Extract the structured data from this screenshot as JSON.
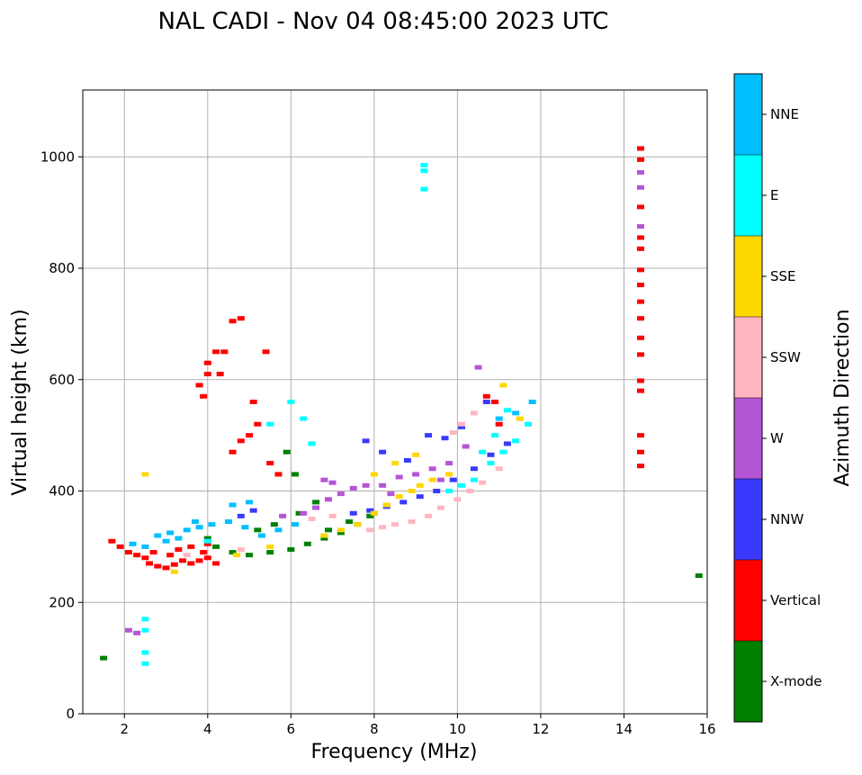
{
  "title": "NAL CADI - Nov 04 08:45:00 2023 UTC",
  "chart_data": {
    "type": "scatter",
    "title": "NAL CADI - Nov 04 08:45:00 2023 UTC",
    "xlabel": "Frequency (MHz)",
    "ylabel": "Virtual height (km)",
    "xlim": [
      1,
      16
    ],
    "ylim": [
      0,
      1120
    ],
    "x_ticks": [
      2,
      4,
      6,
      8,
      10,
      12,
      14,
      16
    ],
    "y_ticks": [
      0,
      200,
      400,
      600,
      800,
      1000
    ],
    "grid": true,
    "colorbar": {
      "label": "Azimuth Direction",
      "categories": [
        {
          "name": "X-mode",
          "color": "#008000"
        },
        {
          "name": "Vertical",
          "color": "#ff0000"
        },
        {
          "name": "NNW",
          "color": "#3a3aff"
        },
        {
          "name": "W",
          "color": "#b455d6"
        },
        {
          "name": "SSW",
          "color": "#ffb6c1"
        },
        {
          "name": "SSE",
          "color": "#ffd700"
        },
        {
          "name": "E",
          "color": "#00ffff"
        },
        {
          "name": "NNE",
          "color": "#00bfff"
        }
      ]
    },
    "traces": [
      {
        "category": "Vertical",
        "points": [
          [
            2.5,
            280
          ],
          [
            2.6,
            270
          ],
          [
            2.8,
            265
          ],
          [
            3.0,
            262
          ],
          [
            3.2,
            268
          ],
          [
            3.4,
            275
          ],
          [
            3.6,
            270
          ],
          [
            3.8,
            275
          ],
          [
            4.0,
            280
          ],
          [
            3.3,
            295
          ],
          [
            3.6,
            300
          ],
          [
            3.9,
            290
          ],
          [
            2.3,
            285
          ],
          [
            2.1,
            290
          ],
          [
            1.9,
            300
          ],
          [
            1.7,
            310
          ],
          [
            4.2,
            270
          ],
          [
            4.0,
            305
          ],
          [
            3.1,
            285
          ],
          [
            2.7,
            290
          ]
        ]
      },
      {
        "category": "X-mode",
        "points": [
          [
            4.2,
            300
          ],
          [
            4.6,
            290
          ],
          [
            5.0,
            285
          ],
          [
            5.5,
            290
          ],
          [
            6.0,
            295
          ],
          [
            6.4,
            305
          ],
          [
            6.8,
            315
          ],
          [
            7.2,
            325
          ],
          [
            7.6,
            340
          ],
          [
            7.9,
            355
          ],
          [
            8.0,
            360
          ],
          [
            4.0,
            315
          ],
          [
            5.6,
            340
          ],
          [
            6.2,
            360
          ],
          [
            6.6,
            380
          ],
          [
            5.2,
            330
          ],
          [
            6.9,
            330
          ],
          [
            7.4,
            345
          ],
          [
            6.1,
            430
          ],
          [
            5.9,
            470
          ],
          [
            1.5,
            100
          ],
          [
            15.8,
            248
          ]
        ]
      },
      {
        "category": "NNE",
        "points": [
          [
            2.8,
            320
          ],
          [
            3.1,
            325
          ],
          [
            3.5,
            330
          ],
          [
            3.8,
            335
          ],
          [
            4.1,
            340
          ],
          [
            4.5,
            345
          ],
          [
            4.9,
            335
          ],
          [
            5.3,
            320
          ],
          [
            5.7,
            330
          ],
          [
            6.1,
            340
          ],
          [
            3.0,
            310
          ],
          [
            3.3,
            315
          ],
          [
            2.2,
            305
          ],
          [
            2.5,
            300
          ],
          [
            11.0,
            530
          ],
          [
            11.4,
            540
          ],
          [
            11.8,
            560
          ],
          [
            4.6,
            375
          ],
          [
            5.0,
            380
          ],
          [
            3.7,
            345
          ]
        ]
      },
      {
        "category": "E",
        "points": [
          [
            9.8,
            400
          ],
          [
            10.1,
            410
          ],
          [
            10.4,
            420
          ],
          [
            10.8,
            450
          ],
          [
            11.1,
            470
          ],
          [
            11.4,
            490
          ],
          [
            11.7,
            520
          ],
          [
            10.6,
            470
          ],
          [
            10.9,
            500
          ],
          [
            11.2,
            545
          ],
          [
            9.2,
            985
          ],
          [
            9.2,
            975
          ],
          [
            9.2,
            942
          ],
          [
            2.5,
            150
          ],
          [
            2.5,
            110
          ],
          [
            2.5,
            90
          ],
          [
            2.5,
            170
          ],
          [
            4.0,
            310
          ],
          [
            5.5,
            520
          ],
          [
            6.0,
            560
          ],
          [
            6.3,
            530
          ],
          [
            6.5,
            485
          ]
        ]
      },
      {
        "category": "W",
        "points": [
          [
            6.3,
            360
          ],
          [
            6.6,
            370
          ],
          [
            6.9,
            385
          ],
          [
            7.2,
            395
          ],
          [
            7.5,
            405
          ],
          [
            7.8,
            410
          ],
          [
            8.2,
            410
          ],
          [
            8.6,
            425
          ],
          [
            9.0,
            430
          ],
          [
            9.4,
            440
          ],
          [
            9.8,
            450
          ],
          [
            8.4,
            395
          ],
          [
            8.9,
            400
          ],
          [
            9.6,
            420
          ],
          [
            10.2,
            480
          ],
          [
            10.5,
            622
          ],
          [
            7.0,
            415
          ],
          [
            6.8,
            420
          ],
          [
            5.8,
            355
          ],
          [
            2.3,
            145
          ],
          [
            2.1,
            150
          ]
        ]
      },
      {
        "category": "NNW",
        "points": [
          [
            7.5,
            360
          ],
          [
            7.9,
            365
          ],
          [
            8.3,
            372
          ],
          [
            8.7,
            380
          ],
          [
            9.1,
            390
          ],
          [
            9.5,
            400
          ],
          [
            9.9,
            420
          ],
          [
            10.4,
            440
          ],
          [
            10.8,
            465
          ],
          [
            11.2,
            485
          ],
          [
            7.8,
            490
          ],
          [
            8.2,
            470
          ],
          [
            8.8,
            455
          ],
          [
            9.3,
            500
          ],
          [
            9.7,
            495
          ],
          [
            10.1,
            515
          ],
          [
            10.7,
            560
          ],
          [
            5.1,
            365
          ],
          [
            4.8,
            355
          ]
        ]
      },
      {
        "category": "SSW",
        "points": [
          [
            7.9,
            330
          ],
          [
            8.2,
            335
          ],
          [
            8.5,
            340
          ],
          [
            8.9,
            345
          ],
          [
            9.3,
            355
          ],
          [
            9.6,
            370
          ],
          [
            10.0,
            385
          ],
          [
            10.3,
            400
          ],
          [
            10.6,
            415
          ],
          [
            11.0,
            440
          ],
          [
            6.5,
            350
          ],
          [
            7.0,
            355
          ],
          [
            9.9,
            505
          ],
          [
            10.1,
            520
          ],
          [
            10.4,
            540
          ],
          [
            3.5,
            285
          ],
          [
            4.8,
            295
          ]
        ]
      },
      {
        "category": "SSE",
        "points": [
          [
            6.8,
            320
          ],
          [
            7.2,
            330
          ],
          [
            7.6,
            340
          ],
          [
            8.0,
            360
          ],
          [
            8.3,
            375
          ],
          [
            8.6,
            390
          ],
          [
            8.9,
            400
          ],
          [
            9.1,
            410
          ],
          [
            9.4,
            420
          ],
          [
            9.8,
            430
          ],
          [
            8.0,
            430
          ],
          [
            8.5,
            450
          ],
          [
            9.0,
            465
          ],
          [
            11.1,
            590
          ],
          [
            11.5,
            530
          ],
          [
            2.5,
            430
          ],
          [
            4.7,
            285
          ],
          [
            5.5,
            300
          ],
          [
            3.2,
            255
          ]
        ]
      },
      {
        "category": "Vertical",
        "points": [
          [
            4.0,
            610
          ],
          [
            4.0,
            630
          ],
          [
            4.2,
            650
          ],
          [
            4.4,
            650
          ],
          [
            4.3,
            610
          ],
          [
            3.8,
            590
          ],
          [
            3.9,
            570
          ],
          [
            5.4,
            650
          ],
          [
            4.8,
            710
          ],
          [
            4.6,
            705
          ],
          [
            5.1,
            560
          ],
          [
            5.2,
            520
          ],
          [
            5.0,
            500
          ],
          [
            4.8,
            490
          ],
          [
            4.6,
            470
          ],
          [
            5.5,
            450
          ],
          [
            5.7,
            430
          ],
          [
            10.7,
            570
          ],
          [
            10.9,
            560
          ],
          [
            11.0,
            520
          ]
        ]
      },
      {
        "category": "Vertical",
        "points": [
          [
            14.4,
            1015
          ],
          [
            14.4,
            995
          ],
          [
            14.4,
            910
          ],
          [
            14.4,
            855
          ],
          [
            14.4,
            835
          ],
          [
            14.4,
            797
          ],
          [
            14.4,
            770
          ],
          [
            14.4,
            740
          ],
          [
            14.4,
            710
          ],
          [
            14.4,
            675
          ],
          [
            14.4,
            645
          ],
          [
            14.4,
            598
          ],
          [
            14.4,
            580
          ],
          [
            14.4,
            500
          ],
          [
            14.4,
            470
          ],
          [
            14.4,
            445
          ]
        ]
      },
      {
        "category": "W",
        "points": [
          [
            14.4,
            972
          ],
          [
            14.4,
            945
          ],
          [
            14.4,
            875
          ]
        ]
      }
    ]
  }
}
